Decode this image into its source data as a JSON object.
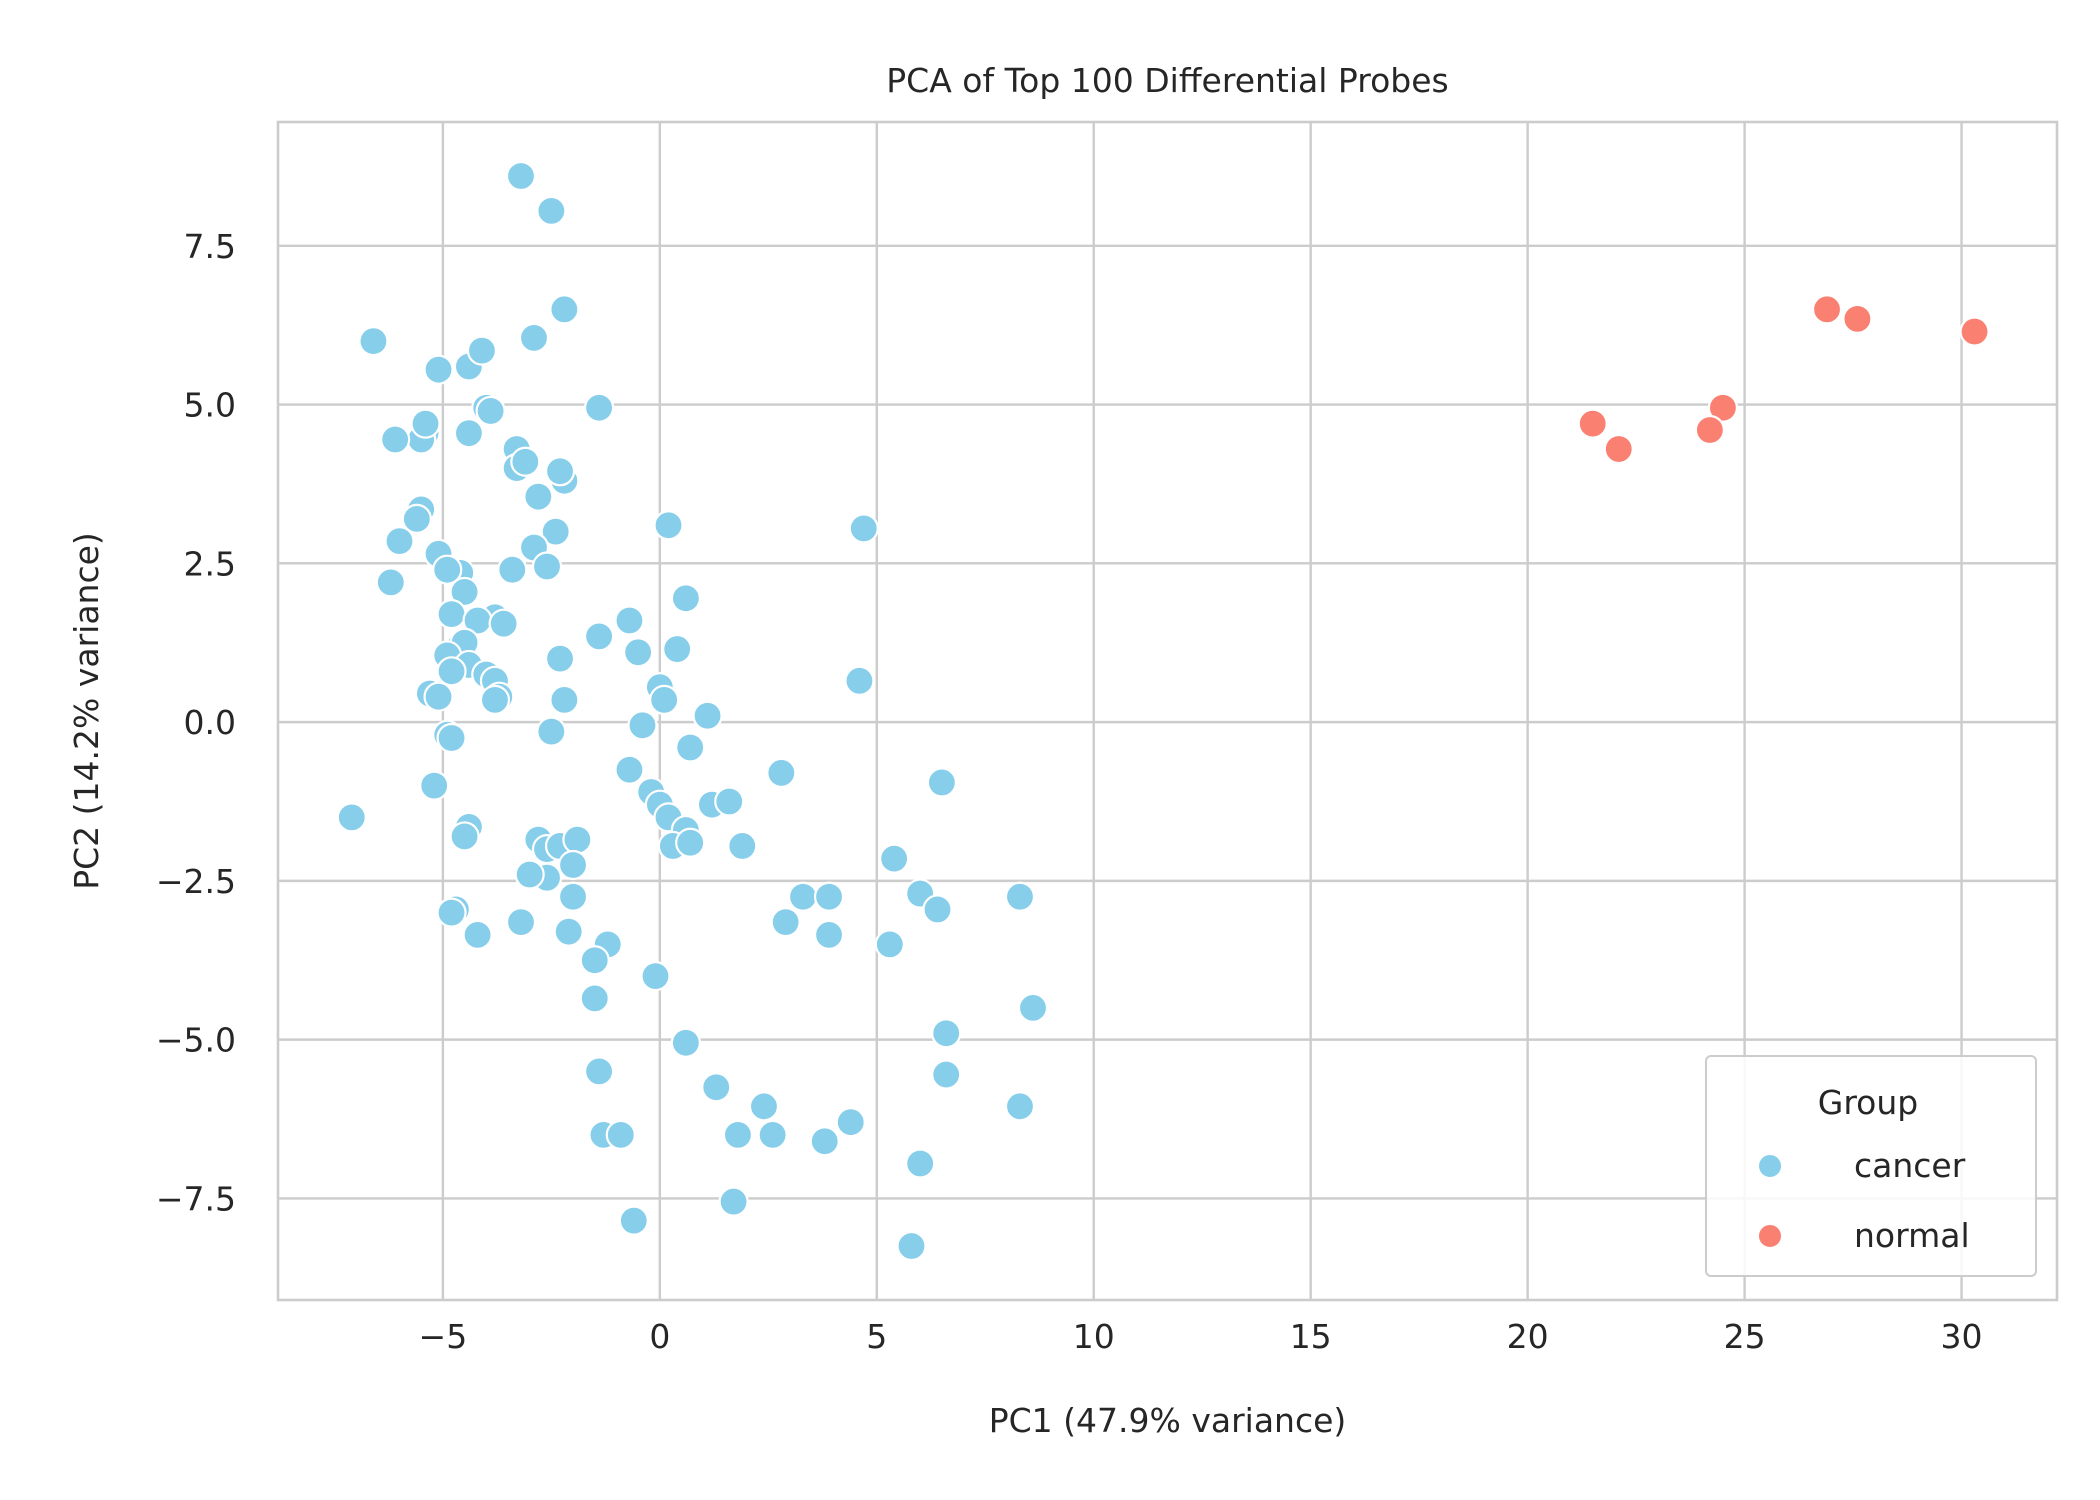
{
  "chart_data": {
    "type": "scatter",
    "title": "PCA of Top 100 Differential Probes",
    "xlabel": "PC1 (47.9% variance)",
    "ylabel": "PC2 (14.2% variance)",
    "xlim": [
      -8.8,
      32.2
    ],
    "ylim": [
      -9.1,
      9.45
    ],
    "xticks": [
      -5,
      0,
      5,
      10,
      15,
      20,
      25,
      30
    ],
    "xtick_labels": [
      "−5",
      "0",
      "5",
      "10",
      "15",
      "20",
      "25",
      "30"
    ],
    "yticks": [
      -7.5,
      -5.0,
      -2.5,
      0.0,
      2.5,
      5.0,
      7.5
    ],
    "ytick_labels": [
      "−7.5",
      "−5.0",
      "−2.5",
      "0.0",
      "2.5",
      "5.0",
      "7.5"
    ],
    "grid": true,
    "legend": {
      "title": "Group",
      "placement": "lower-right"
    },
    "series": [
      {
        "name": "cancer",
        "color": "#87ceeb",
        "points": [
          [
            -3.2,
            8.6
          ],
          [
            -2.5,
            8.05
          ],
          [
            -2.2,
            6.5
          ],
          [
            -6.6,
            6.0
          ],
          [
            -2.9,
            6.05
          ],
          [
            -5.1,
            5.55
          ],
          [
            -4.4,
            5.6
          ],
          [
            -4.1,
            5.85
          ],
          [
            -1.4,
            4.95
          ],
          [
            -4.0,
            4.95
          ],
          [
            -3.9,
            4.9
          ],
          [
            -5.4,
            4.55
          ],
          [
            -5.5,
            4.45
          ],
          [
            -6.1,
            4.45
          ],
          [
            -5.4,
            4.7
          ],
          [
            -4.4,
            4.55
          ],
          [
            -3.3,
            4.3
          ],
          [
            -3.3,
            4.0
          ],
          [
            -3.1,
            4.1
          ],
          [
            -2.2,
            3.8
          ],
          [
            -2.3,
            3.95
          ],
          [
            -2.8,
            3.55
          ],
          [
            -5.5,
            3.35
          ],
          [
            -5.6,
            3.2
          ],
          [
            -2.4,
            3.0
          ],
          [
            -6.0,
            2.85
          ],
          [
            -2.9,
            2.75
          ],
          [
            -5.1,
            2.65
          ],
          [
            -4.6,
            2.35
          ],
          [
            -4.9,
            2.4
          ],
          [
            -3.4,
            2.4
          ],
          [
            -2.6,
            2.45
          ],
          [
            -6.2,
            2.2
          ],
          [
            -4.5,
            2.05
          ],
          [
            -4.8,
            1.7
          ],
          [
            -3.8,
            1.65
          ],
          [
            -4.2,
            1.6
          ],
          [
            -3.6,
            1.55
          ],
          [
            -4.6,
            1.2
          ],
          [
            -4.5,
            1.25
          ],
          [
            -1.4,
            1.35
          ],
          [
            -0.7,
            1.6
          ],
          [
            -0.5,
            1.1
          ],
          [
            0.4,
            1.15
          ],
          [
            -4.9,
            1.05
          ],
          [
            -4.4,
            0.9
          ],
          [
            -4.8,
            0.8
          ],
          [
            -4.0,
            0.75
          ],
          [
            -3.8,
            0.65
          ],
          [
            -2.3,
            1.0
          ],
          [
            -5.3,
            0.45
          ],
          [
            -5.1,
            0.4
          ],
          [
            -3.7,
            0.4
          ],
          [
            -3.8,
            0.35
          ],
          [
            -2.2,
            0.35
          ],
          [
            0.0,
            0.55
          ],
          [
            0.1,
            0.35
          ],
          [
            0.2,
            3.1
          ],
          [
            0.6,
            1.95
          ],
          [
            1.1,
            0.1
          ],
          [
            -4.9,
            -0.2
          ],
          [
            -4.8,
            -0.25
          ],
          [
            -2.5,
            -0.15
          ],
          [
            -0.4,
            -0.05
          ],
          [
            0.7,
            -0.4
          ],
          [
            4.6,
            0.65
          ],
          [
            4.7,
            3.05
          ],
          [
            -0.7,
            -0.75
          ],
          [
            -0.2,
            -1.1
          ],
          [
            0.0,
            -1.3
          ],
          [
            0.2,
            -1.5
          ],
          [
            0.6,
            -1.7
          ],
          [
            0.3,
            -1.95
          ],
          [
            0.7,
            -1.9
          ],
          [
            1.2,
            -1.3
          ],
          [
            1.6,
            -1.25
          ],
          [
            2.8,
            -0.8
          ],
          [
            6.5,
            -0.95
          ],
          [
            -7.1,
            -1.5
          ],
          [
            -5.2,
            -1.0
          ],
          [
            -4.4,
            -1.65
          ],
          [
            -4.5,
            -1.8
          ],
          [
            -2.8,
            -1.85
          ],
          [
            -2.6,
            -2.0
          ],
          [
            -2.3,
            -1.95
          ],
          [
            -1.9,
            -1.85
          ],
          [
            -2.0,
            -2.25
          ],
          [
            -2.6,
            -2.45
          ],
          [
            -3.0,
            -2.4
          ],
          [
            -2.0,
            -2.75
          ],
          [
            1.9,
            -1.95
          ],
          [
            5.4,
            -2.15
          ],
          [
            6.0,
            -2.7
          ],
          [
            6.4,
            -2.95
          ],
          [
            3.3,
            -2.75
          ],
          [
            3.9,
            -2.75
          ],
          [
            2.9,
            -3.15
          ],
          [
            3.9,
            -3.35
          ],
          [
            5.3,
            -3.5
          ],
          [
            8.3,
            -2.75
          ],
          [
            -4.7,
            -2.95
          ],
          [
            -4.8,
            -3.0
          ],
          [
            -3.2,
            -3.15
          ],
          [
            -2.1,
            -3.3
          ],
          [
            -4.2,
            -3.35
          ],
          [
            -1.2,
            -3.5
          ],
          [
            -1.5,
            -3.75
          ],
          [
            -0.1,
            -4.0
          ],
          [
            -1.5,
            -4.35
          ],
          [
            8.6,
            -4.5
          ],
          [
            6.6,
            -4.9
          ],
          [
            0.6,
            -5.05
          ],
          [
            6.6,
            -5.55
          ],
          [
            -1.4,
            -5.5
          ],
          [
            1.3,
            -5.75
          ],
          [
            8.3,
            -6.05
          ],
          [
            2.4,
            -6.05
          ],
          [
            4.4,
            -6.3
          ],
          [
            -1.3,
            -6.5
          ],
          [
            -0.9,
            -6.5
          ],
          [
            1.8,
            -6.5
          ],
          [
            2.6,
            -6.5
          ],
          [
            3.8,
            -6.6
          ],
          [
            6.0,
            -6.95
          ],
          [
            1.7,
            -7.55
          ],
          [
            -0.6,
            -7.85
          ],
          [
            5.8,
            -8.25
          ]
        ]
      },
      {
        "name": "normal",
        "color": "#fa8072",
        "points": [
          [
            26.9,
            6.5
          ],
          [
            27.6,
            6.35
          ],
          [
            30.3,
            6.15
          ],
          [
            24.5,
            4.95
          ],
          [
            21.5,
            4.7
          ],
          [
            24.2,
            4.6
          ],
          [
            22.1,
            4.3
          ]
        ]
      }
    ]
  }
}
